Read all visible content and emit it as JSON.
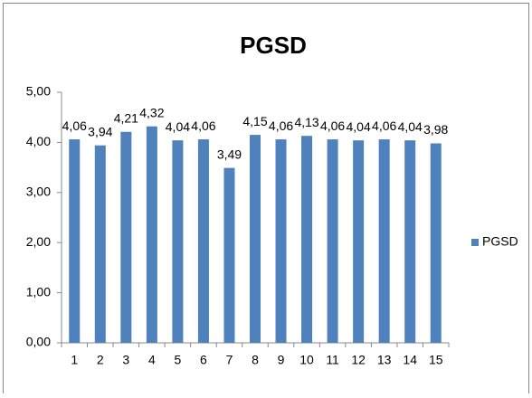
{
  "chart_data": {
    "type": "bar",
    "title": "PGSD",
    "categories": [
      "1",
      "2",
      "3",
      "4",
      "5",
      "6",
      "7",
      "8",
      "9",
      "10",
      "11",
      "12",
      "13",
      "14",
      "15"
    ],
    "series": [
      {
        "name": "PGSD",
        "color": "#4f81bd",
        "values": [
          4.06,
          3.94,
          4.21,
          4.32,
          4.04,
          4.06,
          3.49,
          4.15,
          4.06,
          4.13,
          4.06,
          4.04,
          4.06,
          4.04,
          3.98
        ],
        "value_labels": [
          "4,06",
          "3,94",
          "4,21",
          "4,32",
          "4,04",
          "4,06",
          "3,49",
          "4,15",
          "4,06",
          "4,13",
          "4,06",
          "4,04",
          "4,06",
          "4,04",
          "3,98"
        ]
      }
    ],
    "ylim": [
      0,
      5
    ],
    "yticks": [
      {
        "value": 0,
        "label": "0,00"
      },
      {
        "value": 1,
        "label": "1,00"
      },
      {
        "value": 2,
        "label": "2,00"
      },
      {
        "value": 3,
        "label": "3,00"
      },
      {
        "value": 4,
        "label": "4,00"
      },
      {
        "value": 5,
        "label": "5,00"
      }
    ],
    "grid": false,
    "legend": "right"
  }
}
